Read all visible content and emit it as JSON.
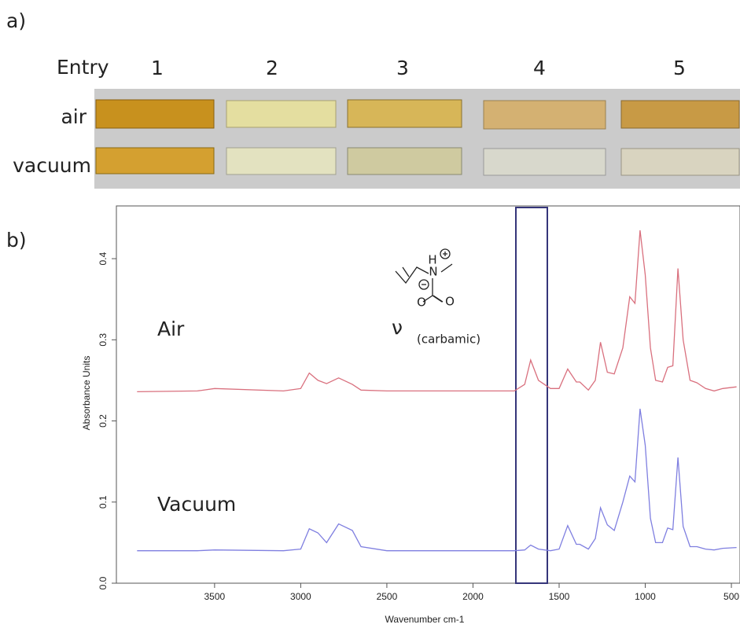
{
  "panel_a": {
    "label": "a)",
    "row_header": "Entry",
    "entries": [
      "1",
      "2",
      "3",
      "4",
      "5"
    ],
    "rows": [
      "air",
      "vacuum"
    ]
  },
  "chart_data": {
    "type": "line",
    "panel_label": "b)",
    "xlabel": "Wavenumber cm-1",
    "ylabel": "Absorbance Units",
    "xlim": [
      4070,
      450
    ],
    "ylim": [
      0,
      0.465
    ],
    "xticks": [
      3500,
      3000,
      2500,
      2000,
      1500,
      1000,
      500
    ],
    "yticks": [
      {
        "value": 0,
        "label": "0.0"
      },
      0.1,
      0.2,
      0.3,
      0.4
    ],
    "annotations": {
      "air": "Air",
      "vacuum": "Vacuum",
      "nu": "ν",
      "nu_sub": "(carbamic)",
      "atoms": [
        "H",
        "N",
        "O",
        "O"
      ]
    },
    "x": [
      3950,
      3600,
      3500,
      3100,
      3000,
      2950,
      2900,
      2850,
      2780,
      2700,
      2650,
      2500,
      2000,
      1760,
      1700,
      1665,
      1620,
      1550,
      1500,
      1450,
      1400,
      1380,
      1330,
      1290,
      1260,
      1220,
      1180,
      1130,
      1090,
      1060,
      1030,
      1000,
      970,
      940,
      900,
      870,
      840,
      810,
      780,
      740,
      700,
      650,
      600,
      550,
      470
    ],
    "series": [
      {
        "color": "#d9707e",
        "values": [
          0.236,
          0.237,
          0.24,
          0.237,
          0.24,
          0.259,
          0.25,
          0.246,
          0.253,
          0.245,
          0.238,
          0.237,
          0.237,
          0.237,
          0.245,
          0.275,
          0.25,
          0.24,
          0.24,
          0.264,
          0.248,
          0.248,
          0.238,
          0.25,
          0.297,
          0.26,
          0.258,
          0.29,
          0.353,
          0.345,
          0.435,
          0.38,
          0.29,
          0.25,
          0.248,
          0.266,
          0.268,
          0.388,
          0.3,
          0.25,
          0.247,
          0.24,
          0.237,
          0.24,
          0.242
        ]
      },
      {
        "color": "#7f7fe0",
        "values": [
          0.04,
          0.04,
          0.041,
          0.04,
          0.042,
          0.067,
          0.062,
          0.05,
          0.073,
          0.065,
          0.045,
          0.04,
          0.04,
          0.04,
          0.041,
          0.047,
          0.042,
          0.04,
          0.042,
          0.071,
          0.048,
          0.048,
          0.042,
          0.055,
          0.093,
          0.072,
          0.065,
          0.1,
          0.132,
          0.125,
          0.215,
          0.17,
          0.08,
          0.05,
          0.05,
          0.068,
          0.066,
          0.155,
          0.07,
          0.045,
          0.045,
          0.042,
          0.041,
          0.043,
          0.044
        ]
      }
    ]
  }
}
